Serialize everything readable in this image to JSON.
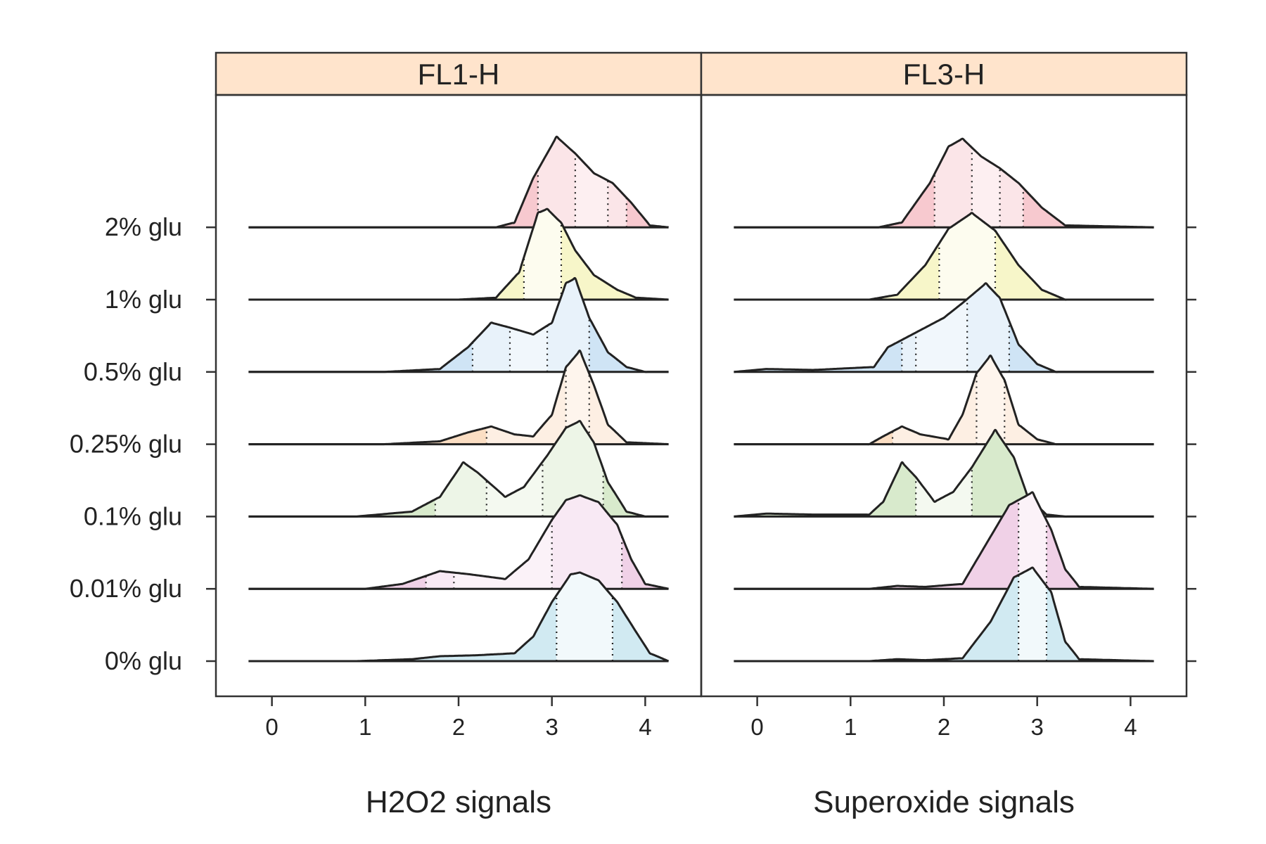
{
  "chart_data": {
    "type": "ridgeline density",
    "categories": [
      "0% glu",
      "0.01% glu",
      "0.1% glu",
      "0.25% glu",
      "0.5% glu",
      "1% glu",
      "2% glu"
    ],
    "x_ticks": [
      "0",
      "1",
      "2",
      "3",
      "4"
    ],
    "xlim": [
      -0.6,
      4.6
    ],
    "colors": {
      "0% glu": "#cfe9f1",
      "0.01% glu": "#efcfe6",
      "0.1% glu": "#d6e9c9",
      "0.25% glu": "#fbdcc0",
      "0.5% glu": "#cce3f4",
      "1% glu": "#f7f5c6",
      "2% glu": "#f7c6cc"
    },
    "panels": [
      {
        "strip": "FL1-H",
        "xlabel": "H2O2 signals",
        "series": [
          {
            "name": "0% glu",
            "density": [
              [
                -0.25,
                0
              ],
              [
                0.9,
                0
              ],
              [
                1.5,
                0.02
              ],
              [
                1.8,
                0.05
              ],
              [
                2.2,
                0.06
              ],
              [
                2.6,
                0.08
              ],
              [
                2.8,
                0.25
              ],
              [
                3.0,
                0.6
              ],
              [
                3.2,
                0.88
              ],
              [
                3.3,
                0.9
              ],
              [
                3.5,
                0.82
              ],
              [
                3.7,
                0.6
              ],
              [
                3.9,
                0.3
              ],
              [
                4.05,
                0.08
              ],
              [
                4.25,
                0
              ]
            ],
            "quantiles": [
              3.05,
              3.65
            ]
          },
          {
            "name": "0.01% glu",
            "density": [
              [
                -0.25,
                0
              ],
              [
                1.0,
                0
              ],
              [
                1.4,
                0.05
              ],
              [
                1.8,
                0.18
              ],
              [
                2.1,
                0.15
              ],
              [
                2.5,
                0.1
              ],
              [
                2.75,
                0.3
              ],
              [
                3.0,
                0.7
              ],
              [
                3.15,
                0.9
              ],
              [
                3.3,
                0.95
              ],
              [
                3.5,
                0.88
              ],
              [
                3.7,
                0.65
              ],
              [
                3.85,
                0.3
              ],
              [
                4.0,
                0.05
              ],
              [
                4.25,
                0
              ]
            ],
            "quantiles": [
              1.65,
              1.95,
              3.0,
              3.75
            ]
          },
          {
            "name": "0.1% glu",
            "density": [
              [
                -0.25,
                0
              ],
              [
                0.9,
                0
              ],
              [
                1.5,
                0.05
              ],
              [
                1.8,
                0.2
              ],
              [
                2.05,
                0.55
              ],
              [
                2.2,
                0.45
              ],
              [
                2.5,
                0.2
              ],
              [
                2.7,
                0.3
              ],
              [
                2.95,
                0.62
              ],
              [
                3.15,
                0.9
              ],
              [
                3.3,
                0.97
              ],
              [
                3.45,
                0.75
              ],
              [
                3.6,
                0.35
              ],
              [
                3.8,
                0.05
              ],
              [
                4.0,
                0
              ],
              [
                4.25,
                0
              ]
            ],
            "quantiles": [
              1.75,
              2.3,
              2.9,
              3.55
            ]
          },
          {
            "name": "0.25% glu",
            "density": [
              [
                -0.25,
                0
              ],
              [
                1.2,
                0
              ],
              [
                1.8,
                0.03
              ],
              [
                2.1,
                0.12
              ],
              [
                2.35,
                0.18
              ],
              [
                2.6,
                0.1
              ],
              [
                2.8,
                0.08
              ],
              [
                3.0,
                0.3
              ],
              [
                3.15,
                0.78
              ],
              [
                3.3,
                0.95
              ],
              [
                3.45,
                0.6
              ],
              [
                3.6,
                0.2
              ],
              [
                3.8,
                0.02
              ],
              [
                4.25,
                0
              ]
            ],
            "quantiles": [
              2.3,
              3.15,
              3.4
            ]
          },
          {
            "name": "0.5% glu",
            "density": [
              [
                -0.25,
                0
              ],
              [
                1.2,
                0
              ],
              [
                1.8,
                0.03
              ],
              [
                2.1,
                0.25
              ],
              [
                2.35,
                0.5
              ],
              [
                2.55,
                0.45
              ],
              [
                2.8,
                0.38
              ],
              [
                3.0,
                0.5
              ],
              [
                3.15,
                0.9
              ],
              [
                3.25,
                0.95
              ],
              [
                3.4,
                0.55
              ],
              [
                3.6,
                0.2
              ],
              [
                3.8,
                0.05
              ],
              [
                4.0,
                0
              ],
              [
                4.25,
                0
              ]
            ],
            "quantiles": [
              2.15,
              2.55,
              2.95,
              3.4
            ]
          },
          {
            "name": "1% glu",
            "density": [
              [
                -0.25,
                0
              ],
              [
                2.0,
                0
              ],
              [
                2.4,
                0.02
              ],
              [
                2.65,
                0.28
              ],
              [
                2.85,
                0.88
              ],
              [
                2.95,
                0.92
              ],
              [
                3.1,
                0.78
              ],
              [
                3.25,
                0.5
              ],
              [
                3.45,
                0.25
              ],
              [
                3.7,
                0.1
              ],
              [
                3.9,
                0.02
              ],
              [
                4.25,
                0
              ]
            ],
            "quantiles": [
              2.7,
              3.1
            ]
          },
          {
            "name": "2% glu",
            "density": [
              [
                -0.25,
                0
              ],
              [
                2.4,
                0
              ],
              [
                2.6,
                0.05
              ],
              [
                2.8,
                0.5
              ],
              [
                3.05,
                0.92
              ],
              [
                3.25,
                0.75
              ],
              [
                3.45,
                0.55
              ],
              [
                3.65,
                0.45
              ],
              [
                3.85,
                0.25
              ],
              [
                4.05,
                0.02
              ],
              [
                4.25,
                0
              ]
            ],
            "quantiles": [
              2.85,
              3.25,
              3.6,
              3.8
            ]
          }
        ]
      },
      {
        "strip": "FL3-H",
        "xlabel": "Superoxide signals",
        "series": [
          {
            "name": "0% glu",
            "density": [
              [
                -0.25,
                0
              ],
              [
                1.2,
                0
              ],
              [
                1.5,
                0.02
              ],
              [
                1.8,
                0.01
              ],
              [
                2.2,
                0.03
              ],
              [
                2.5,
                0.4
              ],
              [
                2.75,
                0.85
              ],
              [
                2.95,
                0.95
              ],
              [
                3.15,
                0.7
              ],
              [
                3.3,
                0.2
              ],
              [
                3.45,
                0.02
              ],
              [
                4.25,
                0
              ]
            ],
            "quantiles": [
              2.8,
              3.1
            ]
          },
          {
            "name": "0.01% glu",
            "density": [
              [
                -0.25,
                0
              ],
              [
                1.2,
                0
              ],
              [
                1.5,
                0.03
              ],
              [
                1.8,
                0.02
              ],
              [
                2.2,
                0.05
              ],
              [
                2.45,
                0.45
              ],
              [
                2.7,
                0.85
              ],
              [
                2.95,
                0.98
              ],
              [
                3.15,
                0.6
              ],
              [
                3.3,
                0.2
              ],
              [
                3.45,
                0.02
              ],
              [
                4.25,
                0
              ]
            ],
            "quantiles": [
              2.8,
              3.1
            ]
          },
          {
            "name": "0.1% glu",
            "density": [
              [
                -0.25,
                0
              ],
              [
                0.1,
                0.03
              ],
              [
                0.6,
                0.02
              ],
              [
                1.2,
                0.02
              ],
              [
                1.35,
                0.15
              ],
              [
                1.55,
                0.55
              ],
              [
                1.7,
                0.4
              ],
              [
                1.9,
                0.15
              ],
              [
                2.1,
                0.25
              ],
              [
                2.3,
                0.5
              ],
              [
                2.55,
                0.88
              ],
              [
                2.75,
                0.6
              ],
              [
                2.9,
                0.2
              ],
              [
                3.1,
                0.02
              ],
              [
                3.3,
                0
              ],
              [
                4.25,
                0
              ]
            ],
            "quantiles": [
              1.7,
              2.3
            ]
          },
          {
            "name": "0.25% glu",
            "density": [
              [
                -0.25,
                0
              ],
              [
                1.2,
                0
              ],
              [
                1.35,
                0.08
              ],
              [
                1.55,
                0.18
              ],
              [
                1.75,
                0.1
              ],
              [
                2.05,
                0.05
              ],
              [
                2.2,
                0.3
              ],
              [
                2.35,
                0.72
              ],
              [
                2.5,
                0.9
              ],
              [
                2.65,
                0.65
              ],
              [
                2.8,
                0.2
              ],
              [
                3.0,
                0.05
              ],
              [
                3.2,
                0
              ],
              [
                4.25,
                0
              ]
            ],
            "quantiles": [
              1.45,
              2.35,
              2.65
            ]
          },
          {
            "name": "0.5% glu",
            "density": [
              [
                -0.25,
                0
              ],
              [
                0.1,
                0.03
              ],
              [
                0.6,
                0.02
              ],
              [
                1.25,
                0.05
              ],
              [
                1.4,
                0.25
              ],
              [
                1.6,
                0.35
              ],
              [
                1.8,
                0.45
              ],
              [
                2.0,
                0.55
              ],
              [
                2.2,
                0.7
              ],
              [
                2.45,
                0.9
              ],
              [
                2.6,
                0.75
              ],
              [
                2.8,
                0.28
              ],
              [
                3.0,
                0.08
              ],
              [
                3.2,
                0
              ],
              [
                4.25,
                0
              ]
            ],
            "quantiles": [
              1.55,
              1.7,
              2.25,
              2.7
            ]
          },
          {
            "name": "1% glu",
            "density": [
              [
                -0.25,
                0
              ],
              [
                1.2,
                0
              ],
              [
                1.5,
                0.05
              ],
              [
                1.8,
                0.35
              ],
              [
                2.05,
                0.72
              ],
              [
                2.3,
                0.88
              ],
              [
                2.55,
                0.7
              ],
              [
                2.8,
                0.35
              ],
              [
                3.05,
                0.1
              ],
              [
                3.3,
                0
              ],
              [
                4.25,
                0
              ]
            ],
            "quantiles": [
              1.95,
              2.55
            ]
          },
          {
            "name": "2% glu",
            "density": [
              [
                -0.25,
                0
              ],
              [
                1.3,
                0
              ],
              [
                1.55,
                0.05
              ],
              [
                1.85,
                0.45
              ],
              [
                2.05,
                0.82
              ],
              [
                2.2,
                0.9
              ],
              [
                2.4,
                0.72
              ],
              [
                2.6,
                0.6
              ],
              [
                2.8,
                0.45
              ],
              [
                3.05,
                0.2
              ],
              [
                3.3,
                0.02
              ],
              [
                4.25,
                0
              ]
            ],
            "quantiles": [
              1.9,
              2.3,
              2.6,
              2.85
            ]
          }
        ]
      }
    ]
  }
}
